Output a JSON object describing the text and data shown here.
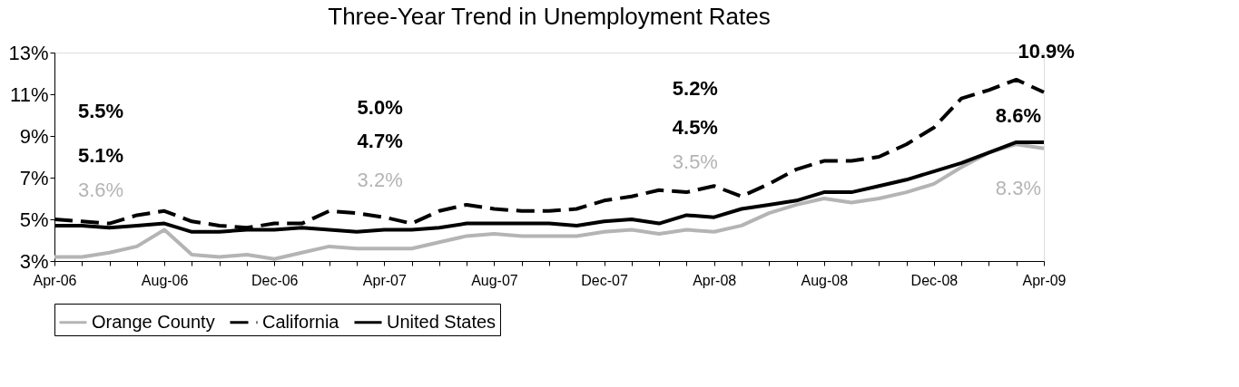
{
  "chart_data": {
    "type": "line",
    "title": "Three-Year Trend in Unemployment Rates",
    "categories": [
      "Apr-06",
      null,
      null,
      null,
      "Aug-06",
      null,
      null,
      null,
      "Dec-06",
      null,
      null,
      null,
      "Apr-07",
      null,
      null,
      null,
      "Aug-07",
      null,
      null,
      null,
      "Dec-07",
      null,
      null,
      null,
      "Apr-08",
      null,
      null,
      null,
      "Aug-08",
      null,
      null,
      null,
      "Dec-08",
      null,
      null,
      null,
      "Apr-09"
    ],
    "series": [
      {
        "name": "Orange County",
        "color": "#b4b4b4",
        "line_style": "solid",
        "values": [
          3.2,
          3.2,
          3.4,
          3.7,
          4.5,
          3.3,
          3.2,
          3.3,
          3.1,
          3.4,
          3.7,
          3.6,
          3.6,
          3.6,
          3.9,
          4.2,
          4.3,
          4.2,
          4.2,
          4.2,
          4.4,
          4.5,
          4.3,
          4.5,
          4.4,
          4.7,
          5.3,
          5.7,
          6.0,
          5.8,
          6.0,
          6.3,
          6.7,
          7.5,
          8.2,
          8.6,
          8.4
        ]
      },
      {
        "name": "California",
        "color": "#000000",
        "line_style": "dashed",
        "values": [
          5.0,
          4.9,
          4.8,
          5.2,
          5.4,
          4.9,
          4.7,
          4.6,
          4.8,
          4.8,
          5.4,
          5.3,
          5.1,
          4.8,
          5.4,
          5.7,
          5.5,
          5.4,
          5.4,
          5.5,
          5.9,
          6.1,
          6.4,
          6.3,
          6.6,
          6.1,
          6.7,
          7.4,
          7.8,
          7.8,
          8.0,
          8.6,
          9.4,
          10.8,
          11.2,
          11.7,
          11.1
        ]
      },
      {
        "name": "United States",
        "color": "#000000",
        "line_style": "solid",
        "values": [
          4.7,
          4.7,
          4.6,
          4.7,
          4.8,
          4.4,
          4.4,
          4.5,
          4.5,
          4.6,
          4.5,
          4.4,
          4.5,
          4.5,
          4.6,
          4.8,
          4.8,
          4.8,
          4.8,
          4.7,
          4.9,
          5.0,
          4.8,
          5.2,
          5.1,
          5.5,
          5.7,
          5.9,
          6.3,
          6.3,
          6.6,
          6.9,
          7.3,
          7.7,
          8.2,
          8.7,
          8.7
        ]
      }
    ],
    "ylim": [
      3,
      13
    ],
    "yticks": [
      {
        "value": 3,
        "label": "3%"
      },
      {
        "value": 5,
        "label": "5%"
      },
      {
        "value": 7,
        "label": "7%"
      },
      {
        "value": 9,
        "label": "9%"
      },
      {
        "value": 11,
        "label": "11%"
      },
      {
        "value": 13,
        "label": "13%"
      }
    ],
    "annotations": [
      "5.5%",
      "5.1%",
      "3.6%",
      "5.0%",
      "4.7%",
      "3.2%",
      "5.2%",
      "4.5%",
      "3.5%",
      "10.9%",
      "8.6%",
      "8.3%"
    ],
    "grid": false,
    "legend": "bottom"
  }
}
